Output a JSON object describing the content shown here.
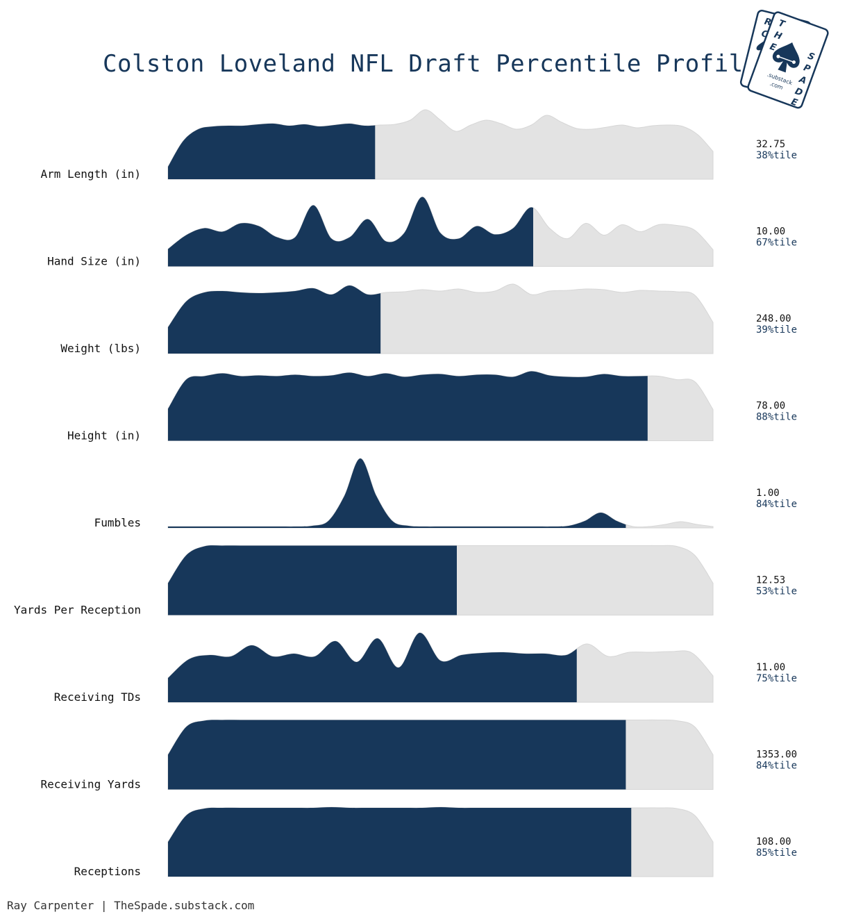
{
  "header": {
    "title": "Colston Loveland NFL Draft Percentile Profile"
  },
  "footer": {
    "credit": "Ray Carpenter | TheSpade.substack.com"
  },
  "logo": {
    "front_letters": [
      "T",
      "H",
      "E",
      "S",
      "P",
      "A",
      "D",
      "E"
    ],
    "back_letters": [
      "R",
      "C"
    ],
    "substack": ".substack",
    "com": ".com",
    "icon": "spade-icon"
  },
  "colors": {
    "highlight": "#17375a",
    "background_fill": "#e3e3e3",
    "title": "#17375a"
  },
  "chart_data": {
    "type": "area",
    "title": "Colston Loveland NFL Draft Percentile Profile",
    "xlabel": "",
    "ylabel": "",
    "series": [
      {
        "name": "Arm Length (in)",
        "value": "32.75",
        "percentile_label": "38%tile",
        "percentile": 38,
        "density": [
          0.18,
          0.55,
          0.72,
          0.76,
          0.77,
          0.77,
          0.79,
          0.8,
          0.77,
          0.79,
          0.76,
          0.78,
          0.8,
          0.77,
          0.78,
          0.79,
          0.85,
          1.0,
          0.85,
          0.69,
          0.78,
          0.85,
          0.8,
          0.72,
          0.78,
          0.92,
          0.82,
          0.73,
          0.72,
          0.75,
          0.78,
          0.74,
          0.77,
          0.78,
          0.76,
          0.64,
          0.4
        ]
      },
      {
        "name": "Hand Size (in)",
        "value": "10.00",
        "percentile_label": "67%tile",
        "percentile": 67,
        "density": [
          0.25,
          0.45,
          0.55,
          0.5,
          0.62,
          0.58,
          0.42,
          0.42,
          0.88,
          0.4,
          0.42,
          0.68,
          0.36,
          0.48,
          1.0,
          0.48,
          0.4,
          0.58,
          0.46,
          0.55,
          0.85,
          0.55,
          0.4,
          0.62,
          0.45,
          0.6,
          0.5,
          0.6,
          0.59,
          0.52,
          0.24
        ]
      },
      {
        "name": "Weight (lbs)",
        "value": "248.00",
        "percentile_label": "39%tile",
        "percentile": 39,
        "density": [
          0.38,
          0.75,
          0.88,
          0.9,
          0.88,
          0.87,
          0.88,
          0.9,
          0.94,
          0.85,
          0.98,
          0.85,
          0.88,
          0.89,
          0.92,
          0.9,
          0.93,
          0.88,
          0.9,
          1.0,
          0.85,
          0.9,
          0.91,
          0.93,
          0.92,
          0.88,
          0.91,
          0.9,
          0.89,
          0.84,
          0.45
        ]
      },
      {
        "name": "Height (in)",
        "value": "78.00",
        "percentile_label": "88%tile",
        "percentile": 88,
        "density": [
          0.46,
          0.88,
          0.93,
          0.97,
          0.93,
          0.94,
          0.93,
          0.95,
          0.93,
          0.94,
          0.98,
          0.93,
          0.97,
          0.92,
          0.95,
          0.96,
          0.93,
          0.95,
          0.95,
          0.92,
          1.0,
          0.94,
          0.92,
          0.92,
          0.96,
          0.93,
          0.93,
          0.93,
          0.88,
          0.85,
          0.45
        ]
      },
      {
        "name": "Fumbles",
        "value": "1.00",
        "percentile_label": "84%tile",
        "percentile": 84,
        "density": [
          0.02,
          0.02,
          0.02,
          0.02,
          0.02,
          0.02,
          0.02,
          0.02,
          0.02,
          0.03,
          0.1,
          0.46,
          1.0,
          0.46,
          0.1,
          0.03,
          0.02,
          0.02,
          0.02,
          0.02,
          0.02,
          0.02,
          0.02,
          0.02,
          0.02,
          0.03,
          0.1,
          0.22,
          0.1,
          0.02,
          0.02,
          0.05,
          0.09,
          0.05,
          0.02
        ]
      },
      {
        "name": "Yards Per Reception",
        "value": "12.53",
        "percentile_label": "53%tile",
        "percentile": 53,
        "density": [
          0.46,
          0.86,
          0.99,
          1.0,
          1.0,
          1.0,
          1.0,
          1.0,
          1.0,
          1.0,
          1.0,
          1.0,
          1.0,
          1.0,
          1.0,
          1.0,
          1.0,
          1.0,
          1.0,
          1.0,
          1.0,
          1.0,
          1.0,
          1.0,
          1.0,
          1.0,
          1.0,
          1.0,
          0.99,
          0.86,
          0.46
        ]
      },
      {
        "name": "Receiving TDs",
        "value": "11.00",
        "percentile_label": "75%tile",
        "percentile": 75,
        "density": [
          0.35,
          0.62,
          0.68,
          0.66,
          0.82,
          0.66,
          0.7,
          0.66,
          0.88,
          0.58,
          0.92,
          0.5,
          1.0,
          0.6,
          0.68,
          0.71,
          0.72,
          0.7,
          0.7,
          0.68,
          0.84,
          0.66,
          0.72,
          0.72,
          0.73,
          0.71,
          0.38
        ]
      },
      {
        "name": "Receiving Yards",
        "value": "1353.00",
        "percentile_label": "84%tile",
        "percentile": 84,
        "density": [
          0.5,
          0.9,
          0.99,
          1.0,
          1.0,
          1.0,
          1.0,
          1.0,
          1.0,
          1.0,
          1.0,
          1.0,
          1.0,
          1.0,
          1.0,
          1.0,
          1.0,
          1.0,
          1.0,
          1.0,
          1.0,
          1.0,
          1.0,
          1.0,
          1.0,
          1.0,
          1.0,
          1.0,
          0.99,
          0.9,
          0.5
        ]
      },
      {
        "name": "Receptions",
        "value": "108.00",
        "percentile_label": "85%tile",
        "percentile": 85,
        "density": [
          0.5,
          0.88,
          0.98,
          0.99,
          0.99,
          0.99,
          0.99,
          0.99,
          0.99,
          1.0,
          0.99,
          0.99,
          0.99,
          0.99,
          0.99,
          1.0,
          0.99,
          0.99,
          0.99,
          0.99,
          0.99,
          0.99,
          0.99,
          0.99,
          0.99,
          0.99,
          0.99,
          0.99,
          0.98,
          0.88,
          0.5
        ]
      }
    ]
  }
}
